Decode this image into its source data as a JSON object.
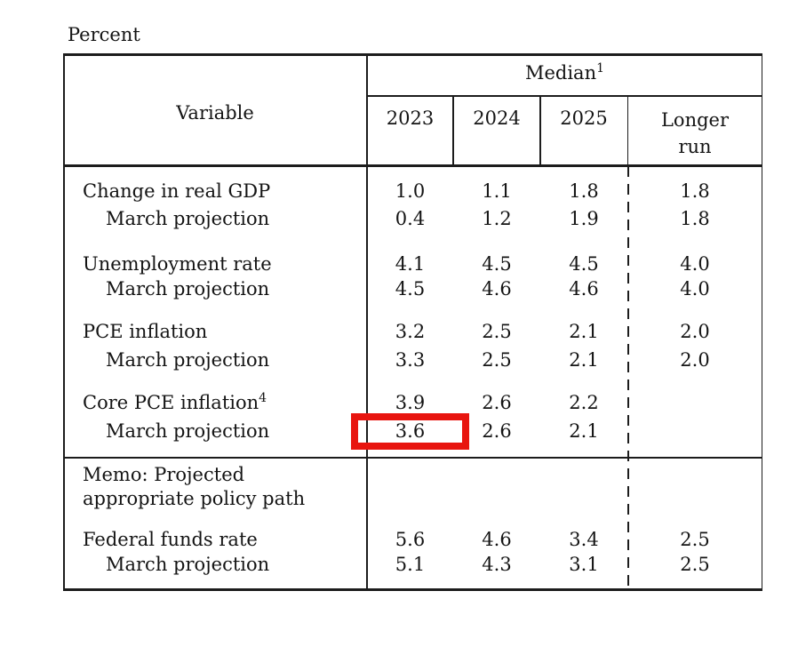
{
  "colors": {
    "highlight_red": "#e8150f",
    "rule_black": "#1c1c1c",
    "text_black": "#141414"
  },
  "unit_label": "Percent",
  "table": {
    "variable_header": "Variable",
    "median_header": {
      "label": "Median",
      "superscript": "1"
    },
    "year_headers": [
      "2023",
      "2024",
      "2025"
    ],
    "longer_run_header": {
      "line1": "Longer",
      "line2": "run"
    },
    "rows": [
      {
        "label": "Change in real GDP",
        "values": [
          "1.0",
          "1.1",
          "1.8",
          "1.8"
        ]
      },
      {
        "label": "March projection",
        "values": [
          "0.4",
          "1.2",
          "1.9",
          "1.8"
        ]
      },
      {
        "label": "Unemployment rate",
        "values": [
          "4.1",
          "4.5",
          "4.5",
          "4.0"
        ]
      },
      {
        "label": "March projection",
        "values": [
          "4.5",
          "4.6",
          "4.6",
          "4.0"
        ]
      },
      {
        "label": "PCE inflation",
        "values": [
          "3.2",
          "2.5",
          "2.1",
          "2.0"
        ]
      },
      {
        "label": "March projection",
        "values": [
          "3.3",
          "2.5",
          "2.1",
          "2.0"
        ]
      },
      {
        "label": "Core PCE inflation",
        "superscript": "4",
        "values": [
          "3.9",
          "2.6",
          "2.2",
          ""
        ]
      },
      {
        "label": "March projection",
        "values": [
          "3.6",
          "2.6",
          "2.1",
          ""
        ]
      },
      {
        "label": "Federal funds rate",
        "values": [
          "5.6",
          "4.6",
          "3.4",
          "2.5"
        ]
      },
      {
        "label": "March projection",
        "values": [
          "5.1",
          "4.3",
          "3.1",
          "2.5"
        ]
      }
    ],
    "memo": {
      "line1": "Memo: Projected",
      "line2": "appropriate policy path"
    }
  },
  "annotation": {
    "highlighted_value": "3.6"
  }
}
